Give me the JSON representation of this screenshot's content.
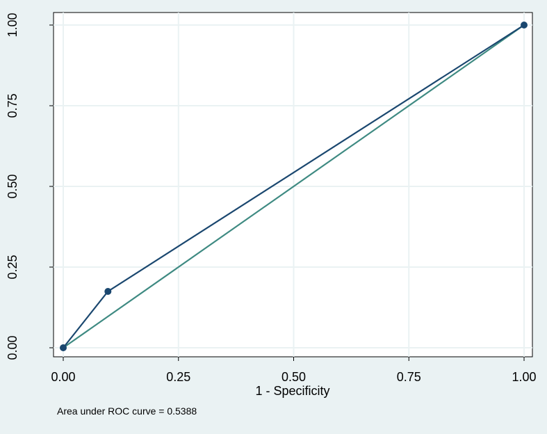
{
  "chart_data": {
    "type": "line",
    "x_label": "1 - Specificity",
    "note": "Area under ROC curve = 0.5388",
    "x": [
      0,
      0.097,
      1
    ],
    "series": [
      {
        "color": "#1a476f",
        "values": [
          0,
          0.1746,
          1
        ],
        "markers": true
      },
      {
        "color": "#3e8a82",
        "x": [
          0,
          1
        ],
        "values": [
          0,
          1
        ],
        "markers": false
      }
    ],
    "xlim": [
      0,
      1
    ],
    "ylim": [
      0,
      1
    ],
    "xticks": [
      {
        "value": 0,
        "label": "0.00"
      },
      {
        "value": 0.25,
        "label": "0.25"
      },
      {
        "value": 0.5,
        "label": "0.50"
      },
      {
        "value": 0.75,
        "label": "0.75"
      },
      {
        "value": 1,
        "label": "1.00"
      }
    ],
    "yticks": [
      {
        "value": 0,
        "label": "0.00"
      },
      {
        "value": 0.25,
        "label": "0.25"
      },
      {
        "value": 0.5,
        "label": "0.50"
      },
      {
        "value": 0.75,
        "label": "0.75"
      },
      {
        "value": 1,
        "label": "1.00"
      }
    ],
    "grid": true
  }
}
